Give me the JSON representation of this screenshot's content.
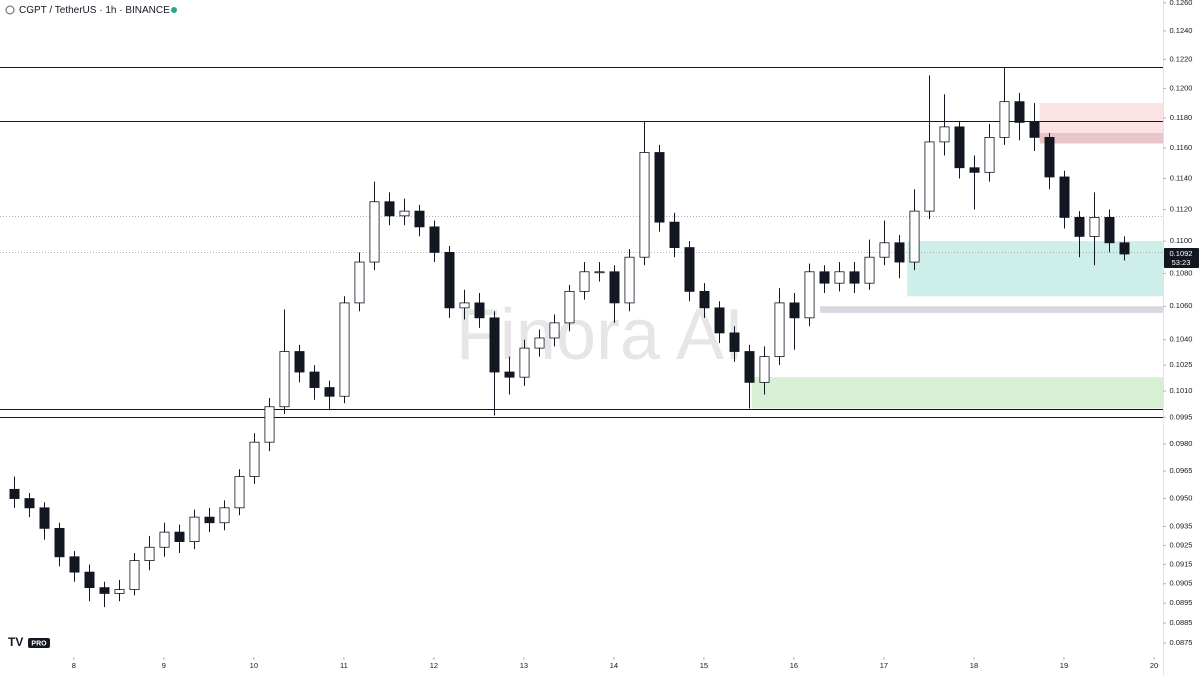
{
  "chart_data": {
    "type": "candlestick",
    "title": "CGPT / TetherUS · 1h · BINANCE",
    "watermark": "Finora AI",
    "logo_badge": "PRO",
    "y_scale": "log",
    "grid": false,
    "up_color": "#ffffff",
    "down_color": "#131722",
    "outline_color": "#131722",
    "x": [
      7.33,
      7.5,
      7.67,
      7.83,
      8,
      8.17,
      8.33,
      8.5,
      8.67,
      8.83,
      9,
      9.17,
      9.33,
      9.5,
      9.67,
      9.83,
      10,
      10.17,
      10.33,
      10.5,
      10.67,
      10.83,
      11,
      11.17,
      11.33,
      11.5,
      11.67,
      11.83,
      12,
      12.17,
      12.33,
      12.5,
      12.67,
      12.83,
      13,
      13.17,
      13.33,
      13.5,
      13.67,
      13.83,
      14,
      14.17,
      14.33,
      14.5,
      14.67,
      14.83,
      15,
      15.17,
      15.33,
      15.5,
      15.67,
      15.83,
      16,
      16.17,
      16.33,
      16.5,
      16.67,
      16.83,
      17,
      17.17,
      17.33,
      17.5,
      17.67,
      17.83,
      18,
      18.17,
      18.33,
      18.5,
      18.67,
      18.83,
      19,
      19.17,
      19.33,
      19.5,
      19.67
    ],
    "open": [
      0.0955,
      0.095,
      0.0945,
      0.0934,
      0.0919,
      0.0911,
      0.0903,
      0.09,
      0.0902,
      0.0917,
      0.0924,
      0.0932,
      0.0927,
      0.094,
      0.0937,
      0.0945,
      0.0962,
      0.0981,
      0.1001,
      0.1033,
      0.1021,
      0.1012,
      0.1007,
      0.1062,
      0.1087,
      0.1125,
      0.1116,
      0.1119,
      0.1109,
      0.1093,
      0.1059,
      0.1062,
      0.1053,
      0.1021,
      0.1018,
      0.1035,
      0.1041,
      0.105,
      0.1069,
      0.1081,
      0.1081,
      0.1062,
      0.109,
      0.1157,
      0.1112,
      0.1096,
      0.1069,
      0.1059,
      0.1044,
      0.1033,
      0.1015,
      0.103,
      0.1062,
      0.1053,
      0.1081,
      0.1074,
      0.1081,
      0.1074,
      0.109,
      0.1099,
      0.1087,
      0.1119,
      0.1164,
      0.1174,
      0.1147,
      0.1144,
      0.1167,
      0.1191,
      0.1177,
      0.1167,
      0.1141,
      0.1115,
      0.1103,
      0.1115,
      0.1099
    ],
    "high": [
      0.0962,
      0.0953,
      0.0948,
      0.0937,
      0.0922,
      0.0915,
      0.0906,
      0.0907,
      0.0921,
      0.093,
      0.0937,
      0.0936,
      0.0944,
      0.0945,
      0.0949,
      0.0966,
      0.0986,
      0.1006,
      0.1058,
      0.1037,
      0.1025,
      0.1016,
      0.1066,
      0.1093,
      0.1138,
      0.1131,
      0.1127,
      0.1123,
      0.1113,
      0.1097,
      0.107,
      0.1068,
      0.1057,
      0.103,
      0.104,
      0.1046,
      0.1055,
      0.1073,
      0.1087,
      0.1087,
      0.1085,
      0.1095,
      0.1178,
      0.1162,
      0.1118,
      0.11,
      0.1074,
      0.1063,
      0.1048,
      0.1037,
      0.1036,
      0.1071,
      0.1068,
      0.1086,
      0.1085,
      0.1087,
      0.1087,
      0.1101,
      0.1113,
      0.1104,
      0.1133,
      0.1209,
      0.1196,
      0.1178,
      0.1155,
      0.1176,
      0.1214,
      0.1197,
      0.119,
      0.117,
      0.1145,
      0.1119,
      0.1131,
      0.112,
      0.1103
    ],
    "low": [
      0.0945,
      0.094,
      0.0928,
      0.0914,
      0.0906,
      0.0896,
      0.0893,
      0.0896,
      0.0899,
      0.0912,
      0.0919,
      0.0921,
      0.0923,
      0.0932,
      0.0933,
      0.0941,
      0.0958,
      0.0976,
      0.0997,
      0.1015,
      0.1005,
      0.0999,
      0.1003,
      0.1057,
      0.1082,
      0.111,
      0.111,
      0.1103,
      0.1087,
      0.1053,
      0.1052,
      0.1047,
      0.0996,
      0.1008,
      0.1013,
      0.103,
      0.1036,
      0.1045,
      0.1064,
      0.1075,
      0.105,
      0.1057,
      0.1085,
      0.1106,
      0.109,
      0.1063,
      0.1053,
      0.1038,
      0.1027,
      0.1,
      0.1008,
      0.1025,
      0.1034,
      0.1048,
      0.1068,
      0.1069,
      0.1068,
      0.107,
      0.1085,
      0.1077,
      0.1082,
      0.1114,
      0.1155,
      0.114,
      0.112,
      0.1138,
      0.1162,
      0.1165,
      0.1158,
      0.1133,
      0.1108,
      0.109,
      0.1085,
      0.1093,
      0.1088
    ],
    "close": [
      0.095,
      0.0945,
      0.0934,
      0.0919,
      0.0911,
      0.0903,
      0.09,
      0.0902,
      0.0917,
      0.0924,
      0.0932,
      0.0927,
      0.094,
      0.0937,
      0.0945,
      0.0962,
      0.0981,
      0.1001,
      0.1033,
      0.1021,
      0.1012,
      0.1007,
      0.1062,
      0.1087,
      0.1125,
      0.1116,
      0.1119,
      0.1109,
      0.1093,
      0.1059,
      0.1062,
      0.1053,
      0.1021,
      0.1018,
      0.1035,
      0.1041,
      0.105,
      0.1069,
      0.1081,
      0.1081,
      0.1062,
      0.109,
      0.1157,
      0.1112,
      0.1096,
      0.1069,
      0.1059,
      0.1044,
      0.1033,
      0.1015,
      0.103,
      0.1062,
      0.1053,
      0.1081,
      0.1074,
      0.1081,
      0.1074,
      0.109,
      0.1099,
      0.1087,
      0.1119,
      0.1164,
      0.1174,
      0.1147,
      0.1144,
      0.1167,
      0.1191,
      0.1177,
      0.1167,
      0.1141,
      0.1115,
      0.1103,
      0.1115,
      0.1099,
      0.1092
    ],
    "xlim": [
      7.18,
      20.1
    ],
    "xticks": [
      8,
      9,
      10,
      11,
      12,
      13,
      14,
      15,
      16,
      17,
      18,
      19,
      20
    ],
    "ylim": [
      0.0869,
      0.1262
    ],
    "yticks": [
      {
        "value": 0.126,
        "label": "0.1260"
      },
      {
        "value": 0.124,
        "label": "0.1240"
      },
      {
        "value": 0.122,
        "label": "0.1220"
      },
      {
        "value": 0.12,
        "label": "0.1200"
      },
      {
        "value": 0.118,
        "label": "0.1180"
      },
      {
        "value": 0.116,
        "label": "0.1160"
      },
      {
        "value": 0.114,
        "label": "0.1140"
      },
      {
        "value": 0.112,
        "label": "0.1120"
      },
      {
        "value": 0.11,
        "label": "0.1100"
      },
      {
        "value": 0.108,
        "label": "0.1080"
      },
      {
        "value": 0.106,
        "label": "0.1060"
      },
      {
        "value": 0.104,
        "label": "0.1040"
      },
      {
        "value": 0.1025,
        "label": "0.1025"
      },
      {
        "value": 0.101,
        "label": "0.1010"
      },
      {
        "value": 0.0995,
        "label": "0.0995"
      },
      {
        "value": 0.098,
        "label": "0.0980"
      },
      {
        "value": 0.0965,
        "label": "0.0965"
      },
      {
        "value": 0.095,
        "label": "0.0950"
      },
      {
        "value": 0.0935,
        "label": "0.0935"
      },
      {
        "value": 0.0925,
        "label": "0.0925"
      },
      {
        "value": 0.0915,
        "label": "0.0915"
      },
      {
        "value": 0.0905,
        "label": "0.0905"
      },
      {
        "value": 0.0895,
        "label": "0.0895"
      },
      {
        "value": 0.0885,
        "label": "0.0885"
      },
      {
        "value": 0.0875,
        "label": "0.0875"
      }
    ],
    "hlines": [
      {
        "value": 0.1215,
        "style": "solid"
      },
      {
        "value": 0.1178,
        "style": "solid"
      },
      {
        "value": 0.1116,
        "style": "dotted"
      },
      {
        "value": 0.1093,
        "style": "dotted"
      },
      {
        "value": 0.1,
        "style": "solid"
      },
      {
        "value": 0.0995,
        "style": "solid"
      }
    ],
    "zones": [
      {
        "from": 18.73,
        "range": [
          0.1163,
          0.119
        ],
        "color": "#fbe3e5"
      },
      {
        "from": 18.73,
        "range": [
          0.1163,
          0.117
        ],
        "color": "#e8c5c9"
      },
      {
        "from": 17.26,
        "range": [
          0.1066,
          0.11
        ],
        "color": "#cdeee9"
      },
      {
        "from": 16.29,
        "range": [
          0.1056,
          0.106
        ],
        "color": "#d9d6df"
      },
      {
        "from": 15.53,
        "range": [
          0.1,
          0.1018
        ],
        "color": "#d8efd6"
      }
    ],
    "last_price": {
      "value": 0.1092,
      "label": "0.1092"
    },
    "countdown": "53:23"
  }
}
